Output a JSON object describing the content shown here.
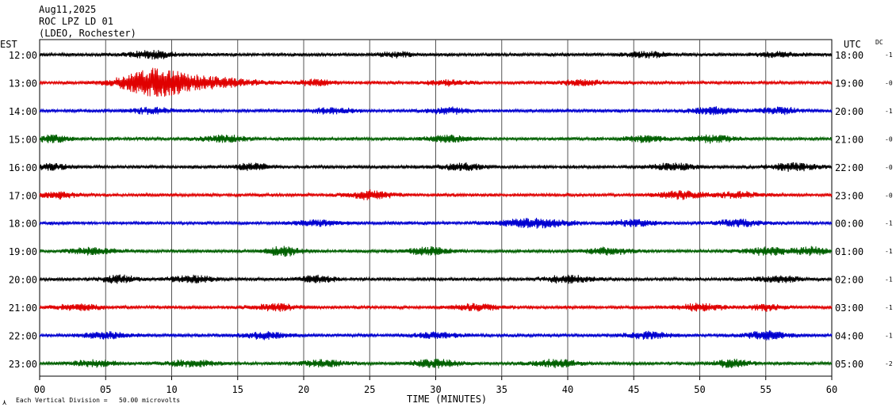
{
  "header": {
    "date": "Aug11,2025",
    "station": "ROC LPZ LD 01",
    "network": "(LDEO, Rochester)"
  },
  "left_zone": "EST",
  "right_zone": "UTC",
  "dc_label": "DC",
  "footer": {
    "scale_note": "Each Vertical Division =   50.00 microvolts",
    "x_axis_title": "TIME (MINUTES)"
  },
  "colors": {
    "trace_cycle": [
      "#000000",
      "#e00000",
      "#0000d0",
      "#006000"
    ],
    "grid": "#000000",
    "background": "#ffffff"
  },
  "chart_data": {
    "type": "line",
    "title": "",
    "xlabel": "TIME (MINUTES)",
    "ylabel": "",
    "xlim": [
      0,
      60
    ],
    "x_ticks": [
      "00",
      "05",
      "10",
      "15",
      "20",
      "25",
      "30",
      "35",
      "40",
      "45",
      "50",
      "55",
      "60"
    ],
    "grid": true,
    "series": [
      {
        "est": "12:00",
        "utc": "18:00",
        "dc": "-1",
        "color": "#000000",
        "bursts": [
          [
            8.5,
            2.0,
            1.0
          ],
          [
            27.0,
            1.5,
            0.6
          ],
          [
            46.0,
            2.0,
            0.6
          ],
          [
            56.0,
            2.0,
            0.5
          ]
        ]
      },
      {
        "est": "13:00",
        "utc": "19:00",
        "dc": "-0",
        "color": "#e00000",
        "bursts": [
          [
            8.7,
            3.0,
            3.5
          ],
          [
            13.0,
            4.0,
            1.2
          ],
          [
            21.0,
            1.5,
            0.8
          ],
          [
            31.0,
            2.0,
            0.6
          ],
          [
            41.0,
            2.0,
            0.6
          ]
        ]
      },
      {
        "est": "14:00",
        "utc": "20:00",
        "dc": "-1",
        "color": "#0000d0",
        "bursts": [
          [
            8.5,
            2.0,
            0.7
          ],
          [
            22.0,
            2.0,
            0.7
          ],
          [
            31.0,
            2.0,
            0.7
          ],
          [
            51.0,
            2.0,
            0.8
          ],
          [
            56.0,
            2.0,
            0.7
          ]
        ]
      },
      {
        "est": "15:00",
        "utc": "21:00",
        "dc": "-0",
        "color": "#006000",
        "bursts": [
          [
            1.0,
            1.5,
            0.9
          ],
          [
            14.0,
            2.0,
            0.8
          ],
          [
            31.0,
            2.0,
            0.8
          ],
          [
            46.0,
            2.0,
            0.7
          ],
          [
            51.0,
            2.0,
            0.8
          ]
        ]
      },
      {
        "est": "16:00",
        "utc": "22:00",
        "dc": "-0",
        "color": "#000000",
        "bursts": [
          [
            1.0,
            1.5,
            0.7
          ],
          [
            16.0,
            1.5,
            0.9
          ],
          [
            32.0,
            2.0,
            0.8
          ],
          [
            48.0,
            2.0,
            0.8
          ],
          [
            57.0,
            2.0,
            0.9
          ]
        ]
      },
      {
        "est": "17:00",
        "utc": "23:00",
        "dc": "-0",
        "color": "#e00000",
        "bursts": [
          [
            1.5,
            1.5,
            0.8
          ],
          [
            25.0,
            2.0,
            1.0
          ],
          [
            48.5,
            2.0,
            1.0
          ],
          [
            53.0,
            2.0,
            0.7
          ]
        ]
      },
      {
        "est": "18:00",
        "utc": "00:00",
        "dc": "-1",
        "color": "#0000d0",
        "bursts": [
          [
            21.0,
            2.0,
            0.7
          ],
          [
            37.5,
            3.0,
            1.1
          ],
          [
            45.0,
            2.0,
            0.8
          ],
          [
            53.0,
            2.0,
            0.8
          ]
        ]
      },
      {
        "est": "19:00",
        "utc": "01:00",
        "dc": "-1",
        "color": "#006000",
        "bursts": [
          [
            4.0,
            2.0,
            0.8
          ],
          [
            18.5,
            1.5,
            1.3
          ],
          [
            29.5,
            2.0,
            0.9
          ],
          [
            43.0,
            2.0,
            0.8
          ],
          [
            55.0,
            2.0,
            0.9
          ],
          [
            58.5,
            1.5,
            1.0
          ]
        ]
      },
      {
        "est": "20:00",
        "utc": "02:00",
        "dc": "-1",
        "color": "#000000",
        "bursts": [
          [
            6.0,
            1.5,
            0.9
          ],
          [
            11.5,
            2.0,
            0.8
          ],
          [
            21.0,
            1.5,
            0.9
          ],
          [
            40.0,
            2.0,
            0.9
          ],
          [
            56.0,
            2.0,
            0.8
          ]
        ]
      },
      {
        "est": "21:00",
        "utc": "03:00",
        "dc": "-1",
        "color": "#e00000",
        "bursts": [
          [
            3.0,
            2.0,
            0.7
          ],
          [
            18.0,
            2.0,
            0.8
          ],
          [
            33.0,
            2.0,
            0.8
          ],
          [
            50.0,
            2.0,
            0.9
          ],
          [
            55.0,
            1.5,
            0.8
          ]
        ]
      },
      {
        "est": "22:00",
        "utc": "04:00",
        "dc": "-1",
        "color": "#0000d0",
        "bursts": [
          [
            5.0,
            2.0,
            0.8
          ],
          [
            17.0,
            2.0,
            0.8
          ],
          [
            30.0,
            2.0,
            0.7
          ],
          [
            46.0,
            2.0,
            0.8
          ],
          [
            55.0,
            2.0,
            1.0
          ]
        ]
      },
      {
        "est": "23:00",
        "utc": "05:00",
        "dc": "-2",
        "color": "#006000",
        "bursts": [
          [
            4.0,
            2.0,
            0.8
          ],
          [
            11.5,
            2.0,
            0.8
          ],
          [
            21.5,
            2.0,
            0.8
          ],
          [
            30.0,
            2.0,
            1.0
          ],
          [
            39.0,
            2.0,
            0.9
          ],
          [
            52.5,
            1.5,
            1.0
          ]
        ]
      }
    ]
  }
}
